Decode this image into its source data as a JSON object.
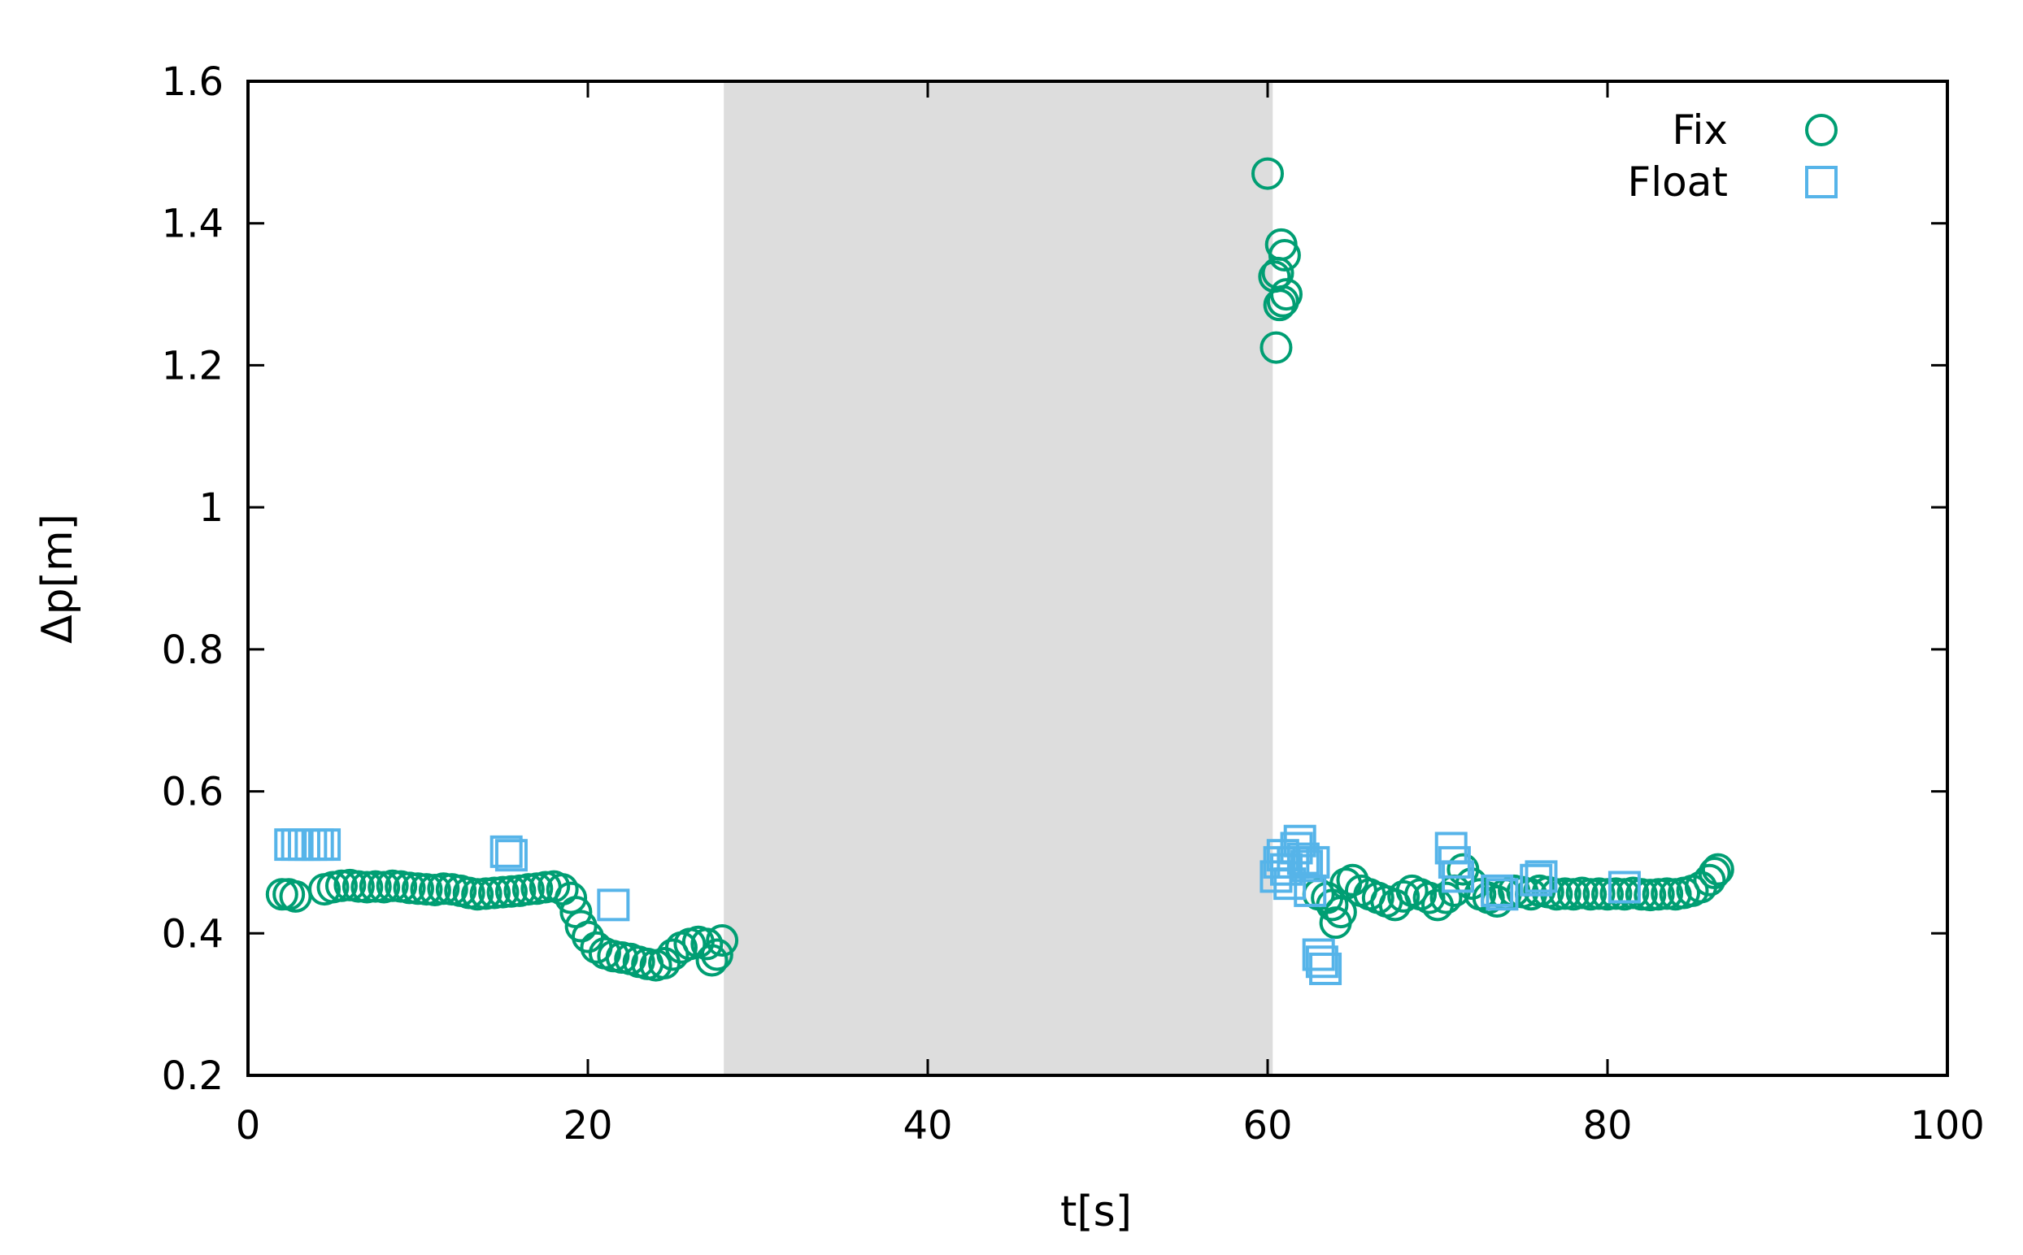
{
  "chart_data": {
    "type": "scatter",
    "xlabel": "t[s]",
    "ylabel": "Δp[m]",
    "xlim": [
      0,
      100
    ],
    "ylim": [
      0.2,
      1.6
    ],
    "xticks": [
      0,
      20,
      40,
      60,
      80,
      100
    ],
    "xtick_labels": [
      "0",
      "20",
      "40",
      "60",
      "80",
      "100"
    ],
    "yticks": [
      0.2,
      0.4,
      0.6,
      0.8,
      1.0,
      1.2,
      1.4,
      1.6
    ],
    "ytick_labels": [
      "0.2",
      "0.4",
      "0.6",
      "0.8",
      "1",
      "1.2",
      "1.4",
      "1.6"
    ],
    "grid": false,
    "legend_position": "top-right",
    "shaded_region": {
      "x": [
        28,
        60.3
      ],
      "color": "#dddddd"
    },
    "series": [
      {
        "name": "Fix",
        "marker": "circle",
        "color": "#009e73",
        "points": [
          [
            2.0,
            0.455
          ],
          [
            2.4,
            0.455
          ],
          [
            2.8,
            0.452
          ],
          [
            4.5,
            0.462
          ],
          [
            5.0,
            0.465
          ],
          [
            5.5,
            0.467
          ],
          [
            6.0,
            0.468
          ],
          [
            6.5,
            0.466
          ],
          [
            7.0,
            0.465
          ],
          [
            7.5,
            0.466
          ],
          [
            8.0,
            0.465
          ],
          [
            8.5,
            0.467
          ],
          [
            9.0,
            0.466
          ],
          [
            9.5,
            0.464
          ],
          [
            10.0,
            0.463
          ],
          [
            10.5,
            0.462
          ],
          [
            11.0,
            0.461
          ],
          [
            11.5,
            0.463
          ],
          [
            12.0,
            0.462
          ],
          [
            12.5,
            0.46
          ],
          [
            13.0,
            0.457
          ],
          [
            13.5,
            0.455
          ],
          [
            14.0,
            0.456
          ],
          [
            14.5,
            0.457
          ],
          [
            15.0,
            0.458
          ],
          [
            15.5,
            0.459
          ],
          [
            16.0,
            0.46
          ],
          [
            16.5,
            0.462
          ],
          [
            17.0,
            0.463
          ],
          [
            17.5,
            0.465
          ],
          [
            18.0,
            0.466
          ],
          [
            18.5,
            0.462
          ],
          [
            19.0,
            0.45
          ],
          [
            19.3,
            0.43
          ],
          [
            19.6,
            0.41
          ],
          [
            20.0,
            0.395
          ],
          [
            20.5,
            0.38
          ],
          [
            21.0,
            0.372
          ],
          [
            21.5,
            0.368
          ],
          [
            22.0,
            0.366
          ],
          [
            22.5,
            0.364
          ],
          [
            23.0,
            0.36
          ],
          [
            23.5,
            0.357
          ],
          [
            24.0,
            0.355
          ],
          [
            24.5,
            0.358
          ],
          [
            25.0,
            0.37
          ],
          [
            25.5,
            0.38
          ],
          [
            26.0,
            0.385
          ],
          [
            26.5,
            0.388
          ],
          [
            27.0,
            0.385
          ],
          [
            27.3,
            0.362
          ],
          [
            27.6,
            0.37
          ],
          [
            27.9,
            0.39
          ],
          [
            60.0,
            1.47
          ],
          [
            60.4,
            1.325
          ],
          [
            60.6,
            1.33
          ],
          [
            60.8,
            1.37
          ],
          [
            61.0,
            1.355
          ],
          [
            61.1,
            1.3
          ],
          [
            60.9,
            1.29
          ],
          [
            60.7,
            1.285
          ],
          [
            60.5,
            1.225
          ],
          [
            63.0,
            0.455
          ],
          [
            63.5,
            0.45
          ],
          [
            63.8,
            0.44
          ],
          [
            64.0,
            0.415
          ],
          [
            64.3,
            0.43
          ],
          [
            64.6,
            0.47
          ],
          [
            65.0,
            0.475
          ],
          [
            65.5,
            0.46
          ],
          [
            66.0,
            0.455
          ],
          [
            66.5,
            0.45
          ],
          [
            67.0,
            0.445
          ],
          [
            67.5,
            0.44
          ],
          [
            68.0,
            0.452
          ],
          [
            68.5,
            0.46
          ],
          [
            69.0,
            0.455
          ],
          [
            69.5,
            0.45
          ],
          [
            70.0,
            0.44
          ],
          [
            70.5,
            0.45
          ],
          [
            71.0,
            0.46
          ],
          [
            71.5,
            0.49
          ],
          [
            72.0,
            0.47
          ],
          [
            72.5,
            0.455
          ],
          [
            73.0,
            0.45
          ],
          [
            73.5,
            0.445
          ],
          [
            74.0,
            0.455
          ],
          [
            74.5,
            0.46
          ],
          [
            75.0,
            0.458
          ],
          [
            75.5,
            0.455
          ],
          [
            76.0,
            0.46
          ],
          [
            76.5,
            0.458
          ],
          [
            77.0,
            0.455
          ],
          [
            77.5,
            0.456
          ],
          [
            78.0,
            0.455
          ],
          [
            78.5,
            0.457
          ],
          [
            79.0,
            0.455
          ],
          [
            79.5,
            0.456
          ],
          [
            80.0,
            0.455
          ],
          [
            80.5,
            0.456
          ],
          [
            81.0,
            0.455
          ],
          [
            81.5,
            0.457
          ],
          [
            82.0,
            0.455
          ],
          [
            82.5,
            0.454
          ],
          [
            83.0,
            0.455
          ],
          [
            83.5,
            0.456
          ],
          [
            84.0,
            0.455
          ],
          [
            84.5,
            0.457
          ],
          [
            85.0,
            0.46
          ],
          [
            85.5,
            0.465
          ],
          [
            86.0,
            0.475
          ],
          [
            86.3,
            0.485
          ],
          [
            86.5,
            0.49
          ]
        ]
      },
      {
        "name": "Float",
        "marker": "square",
        "color": "#56b4e9",
        "points": [
          [
            2.5,
            0.525
          ],
          [
            2.9,
            0.525
          ],
          [
            3.3,
            0.525
          ],
          [
            3.7,
            0.525
          ],
          [
            4.1,
            0.525
          ],
          [
            4.5,
            0.525
          ],
          [
            15.2,
            0.515
          ],
          [
            15.5,
            0.51
          ],
          [
            21.5,
            0.44
          ],
          [
            60.5,
            0.48
          ],
          [
            60.7,
            0.5
          ],
          [
            60.9,
            0.51
          ],
          [
            61.1,
            0.49
          ],
          [
            61.3,
            0.47
          ],
          [
            61.5,
            0.5
          ],
          [
            61.7,
            0.52
          ],
          [
            61.9,
            0.53
          ],
          [
            62.1,
            0.505
          ],
          [
            62.3,
            0.495
          ],
          [
            62.5,
            0.46
          ],
          [
            62.7,
            0.5
          ],
          [
            63.0,
            0.37
          ],
          [
            63.2,
            0.36
          ],
          [
            63.4,
            0.35
          ],
          [
            70.8,
            0.52
          ],
          [
            71.0,
            0.5
          ],
          [
            71.2,
            0.48
          ],
          [
            73.5,
            0.46
          ],
          [
            73.8,
            0.455
          ],
          [
            75.8,
            0.475
          ],
          [
            76.1,
            0.48
          ],
          [
            81.0,
            0.465
          ]
        ]
      }
    ]
  }
}
